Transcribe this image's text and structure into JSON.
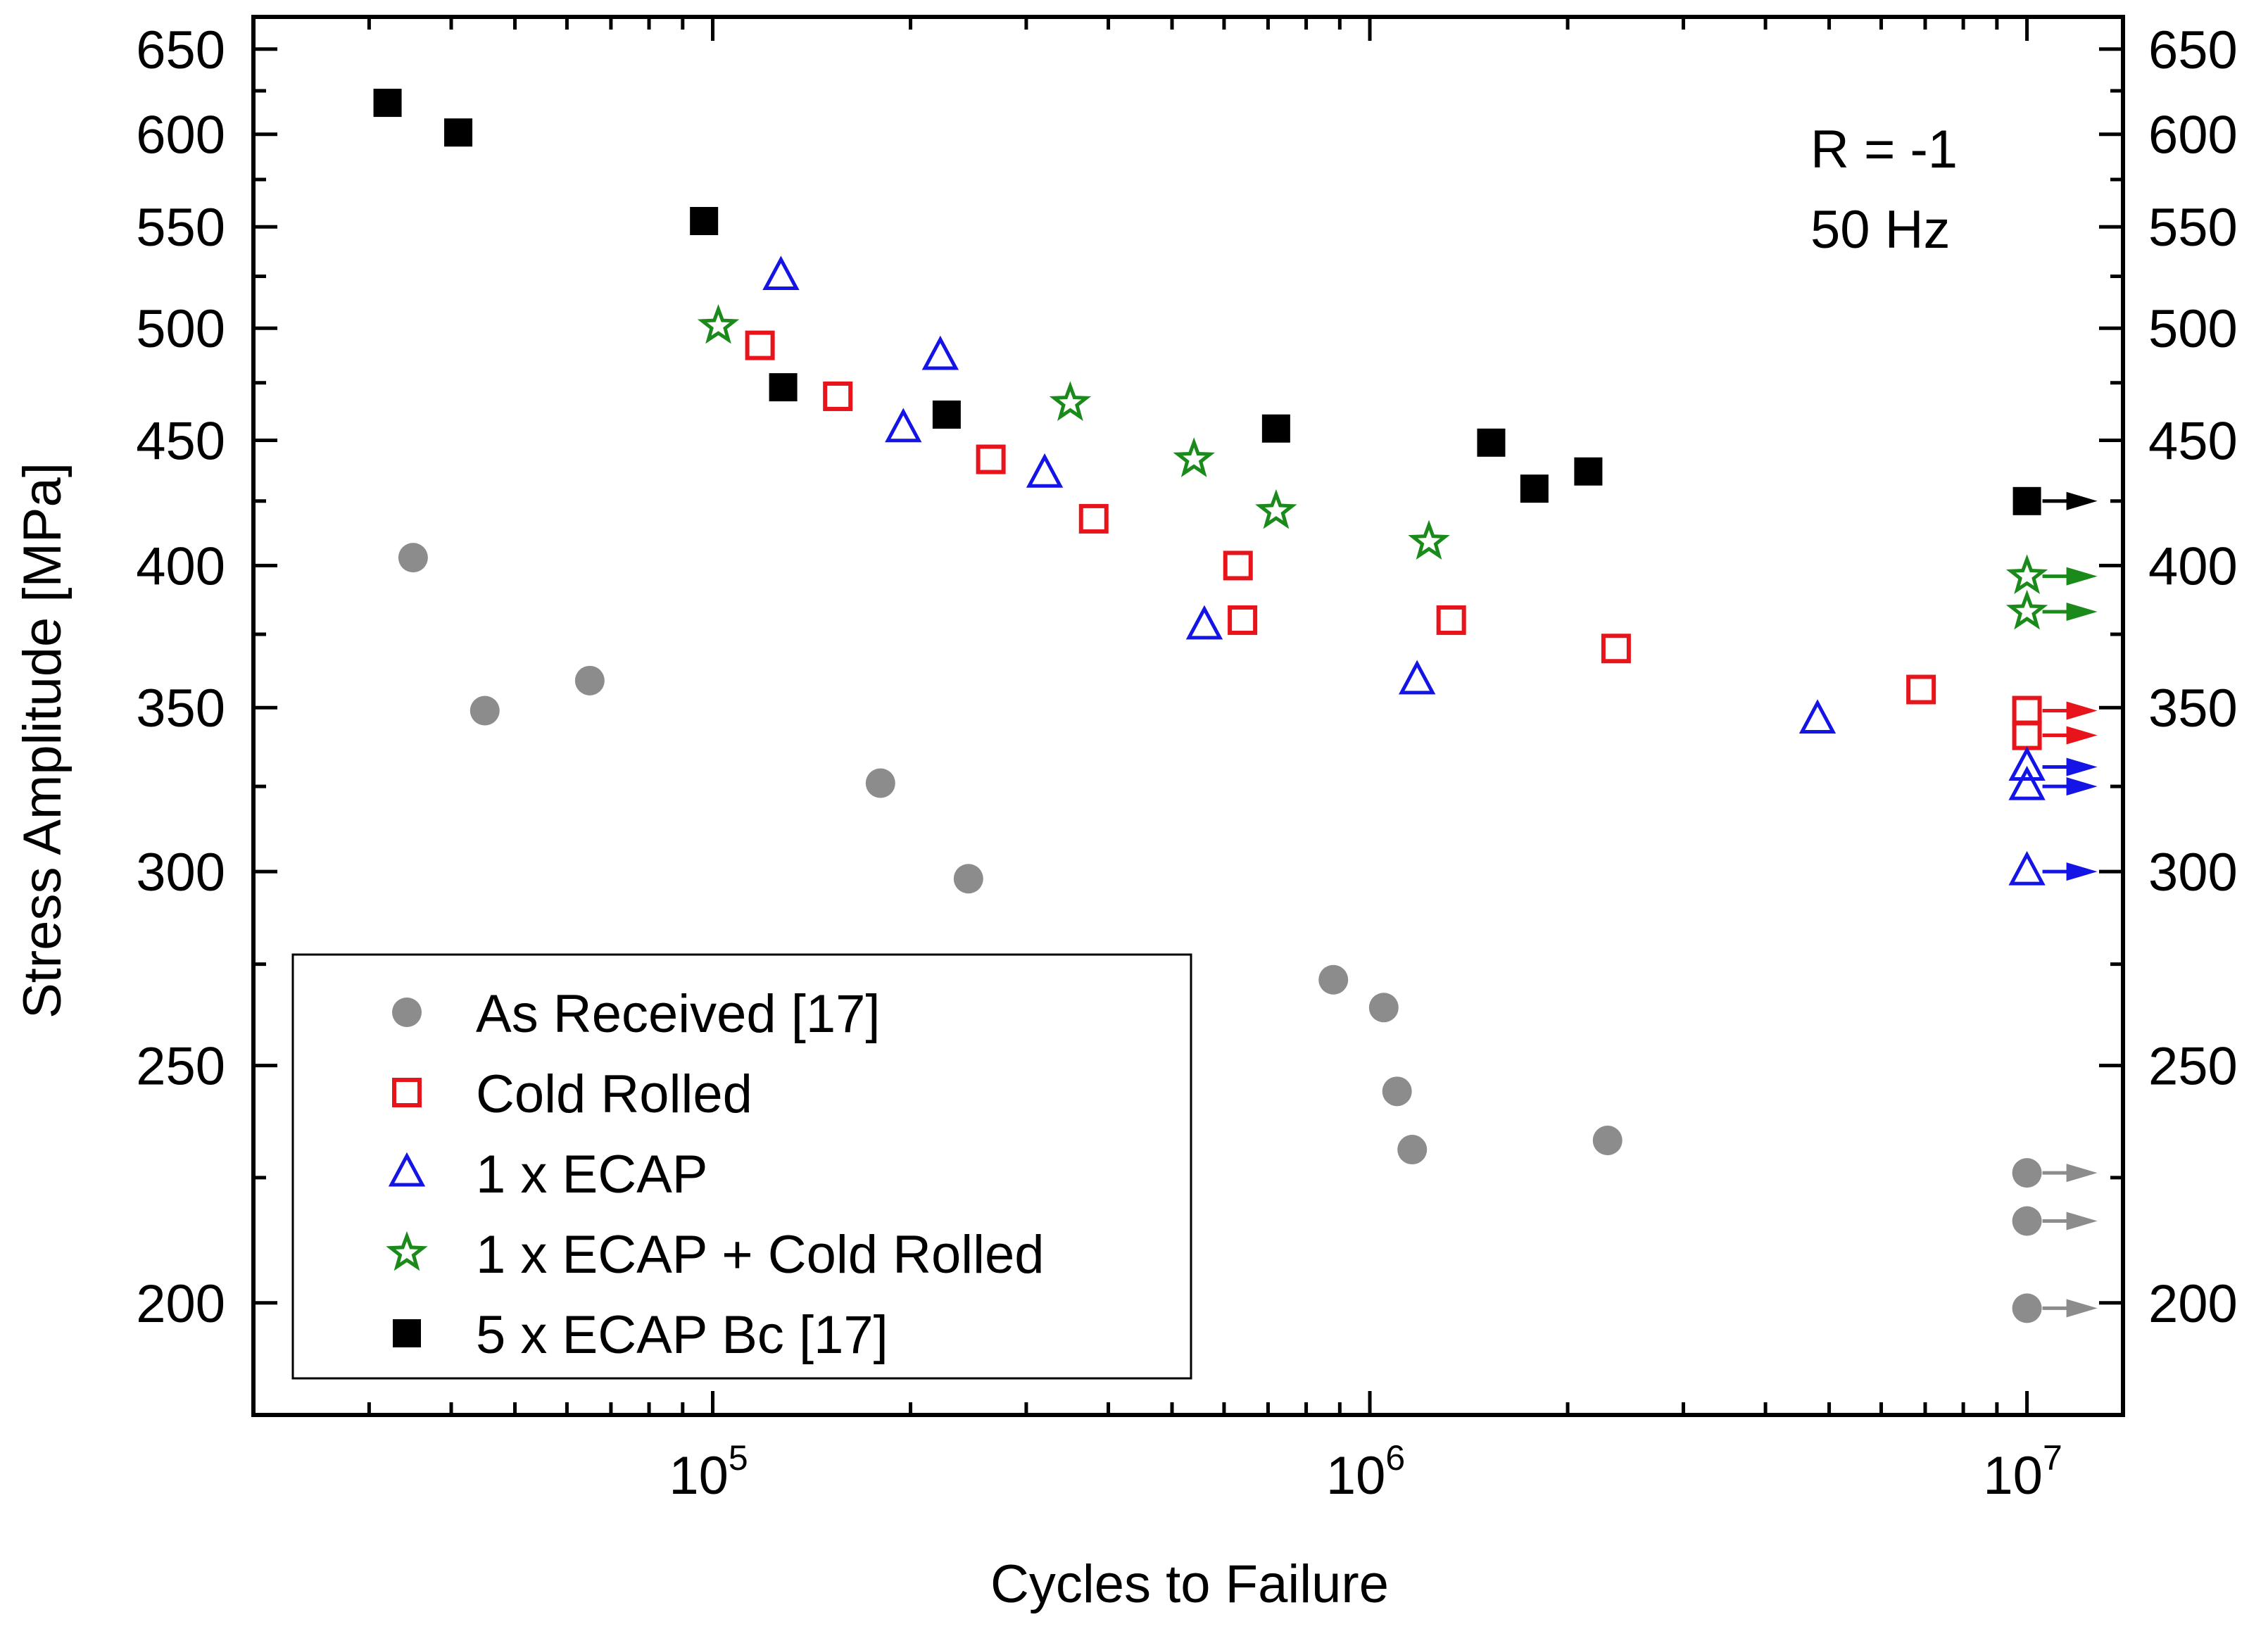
{
  "chart_data": {
    "type": "scatter",
    "xlabel": "Cycles to Failure",
    "ylabel": "Stress Amplitude [MPa]",
    "x_scale": "log",
    "y_scale": "log",
    "xlim": [
      20000,
      14000000
    ],
    "ylim": [
      180,
      670
    ],
    "x_ticks": [
      {
        "value": 100000,
        "base": "10",
        "exp": "5"
      },
      {
        "value": 1000000,
        "base": "10",
        "exp": "6"
      },
      {
        "value": 10000000,
        "base": "10",
        "exp": "7"
      }
    ],
    "y_ticks": [
      200,
      250,
      300,
      350,
      400,
      450,
      500,
      550,
      600,
      650
    ],
    "y_ticks_right": [
      "200",
      "250",
      "300",
      "350",
      "400",
      "450",
      "500",
      "550",
      "600",
      "650"
    ],
    "annotations": [
      "R = -1",
      "50 Hz"
    ],
    "legend_position": "bottom-left",
    "series": [
      {
        "name": "As Received [17]",
        "marker": "circle-filled",
        "color": "#8c8c8c",
        "points": [
          [
            35000,
            403
          ],
          [
            45000,
            349
          ],
          [
            65000,
            359
          ],
          [
            180000,
            326
          ],
          [
            245000,
            298
          ],
          [
            880000,
            271
          ],
          [
            1050000,
            264
          ],
          [
            1100000,
            244
          ],
          [
            1160000,
            231
          ],
          [
            2300000,
            233
          ]
        ],
        "runouts": [
          [
            10000000,
            226
          ],
          [
            10000000,
            216
          ],
          [
            10000000,
            199
          ]
        ]
      },
      {
        "name": "Cold Rolled",
        "marker": "square-open",
        "color": "#e8141b",
        "points": [
          [
            118000,
            492
          ],
          [
            155000,
            469
          ],
          [
            265000,
            442
          ],
          [
            380000,
            418
          ],
          [
            630000,
            400
          ],
          [
            640000,
            380
          ],
          [
            1330000,
            380
          ],
          [
            2370000,
            370
          ],
          [
            6900000,
            356
          ]
        ],
        "runouts": [
          [
            10000000,
            349
          ],
          [
            10000000,
            341
          ]
        ]
      },
      {
        "name": "1 x ECAP",
        "marker": "triangle-open",
        "color": "#1414e6",
        "points": [
          [
            127000,
            525
          ],
          [
            222000,
            487
          ],
          [
            195000,
            455
          ],
          [
            320000,
            436
          ],
          [
            560000,
            378
          ],
          [
            1180000,
            359
          ],
          [
            4800000,
            346
          ]
        ],
        "runouts": [
          [
            10000000,
            331
          ],
          [
            10000000,
            325
          ],
          [
            10000000,
            300
          ]
        ]
      },
      {
        "name": "1 x ECAP + Cold Rolled",
        "marker": "star-open",
        "color": "#1a8a1a",
        "points": [
          [
            102000,
            501
          ],
          [
            350000,
            466
          ],
          [
            540000,
            442
          ],
          [
            720000,
            421
          ],
          [
            1230000,
            409
          ]
        ],
        "runouts": [
          [
            10000000,
            396
          ],
          [
            10000000,
            383
          ]
        ]
      },
      {
        "name": "5 x ECAP Bc [17]",
        "marker": "square-filled",
        "color": "#000000",
        "points": [
          [
            32000,
            618
          ],
          [
            41000,
            601
          ],
          [
            97000,
            553
          ],
          [
            128000,
            473
          ],
          [
            227000,
            461
          ],
          [
            720000,
            455
          ],
          [
            1530000,
            449
          ],
          [
            1780000,
            430
          ],
          [
            2150000,
            437
          ]
        ],
        "runouts": [
          [
            10000000,
            425
          ]
        ]
      }
    ]
  }
}
